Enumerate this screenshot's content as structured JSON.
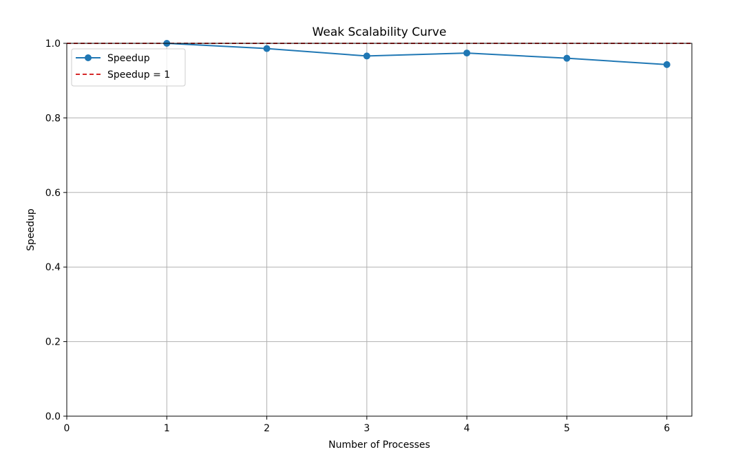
{
  "chart_data": {
    "type": "line",
    "title": "Weak Scalability Curve",
    "xlabel": "Number of Processes",
    "ylabel": "Speedup",
    "xlim": [
      0,
      6.25
    ],
    "ylim": [
      0.0,
      1.0
    ],
    "xticks": [
      0,
      1,
      2,
      3,
      4,
      5,
      6
    ],
    "xtick_labels": [
      "0",
      "1",
      "2",
      "3",
      "4",
      "5",
      "6"
    ],
    "yticks": [
      0.0,
      0.2,
      0.4,
      0.6,
      0.8,
      1.0
    ],
    "ytick_labels": [
      "0.0",
      "0.2",
      "0.4",
      "0.6",
      "0.8",
      "1.0"
    ],
    "grid": true,
    "legend_position": "top-left",
    "series": [
      {
        "name": "Speedup",
        "style": "solid-with-circle-markers",
        "color": "#1f77b4",
        "x": [
          1,
          2,
          3,
          4,
          5,
          6
        ],
        "values": [
          1.0,
          0.986,
          0.966,
          0.974,
          0.96,
          0.943
        ]
      }
    ],
    "reference_lines": [
      {
        "name": "Speedup = 1",
        "style": "dashed",
        "color": "#d62728",
        "y": 1.0
      }
    ]
  }
}
